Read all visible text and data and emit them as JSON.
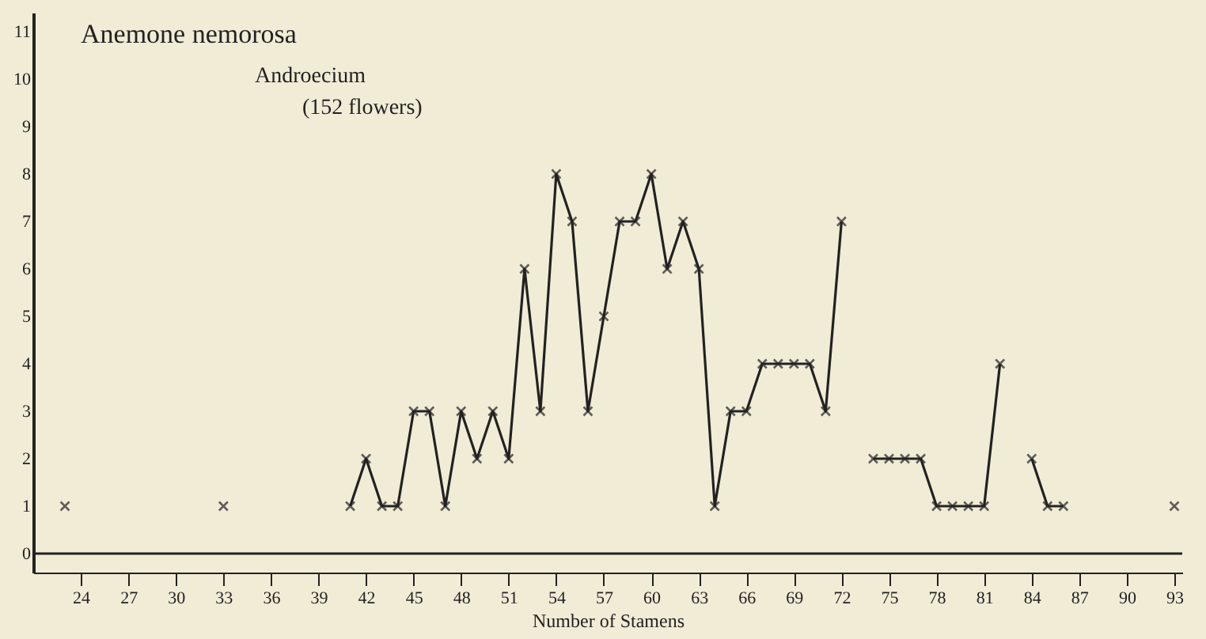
{
  "chart_data": {
    "type": "line",
    "title": "Anemone nemorosa",
    "subtitle": [
      "Androecium",
      "(152 flowers)"
    ],
    "xlabel": "Number of Stamens",
    "x": [
      23,
      24,
      25,
      26,
      27,
      28,
      29,
      30,
      31,
      32,
      33,
      34,
      35,
      36,
      37,
      38,
      39,
      40,
      41,
      42,
      43,
      44,
      45,
      46,
      47,
      48,
      49,
      50,
      51,
      52,
      53,
      54,
      55,
      56,
      57,
      58,
      59,
      60,
      61,
      62,
      63,
      64,
      65,
      66,
      67,
      68,
      69,
      70,
      71,
      72,
      73,
      74,
      75,
      76,
      77,
      78,
      79,
      80,
      81,
      82,
      83,
      84,
      85,
      86,
      87,
      88,
      89,
      90,
      91,
      92,
      93
    ],
    "series": [
      {
        "color": "#222222",
        "values": [
          1,
          null,
          null,
          null,
          null,
          null,
          null,
          null,
          null,
          null,
          1,
          null,
          null,
          null,
          null,
          null,
          null,
          null,
          1,
          2,
          1,
          1,
          3,
          3,
          1,
          3,
          2,
          3,
          2,
          6,
          3,
          8,
          7,
          3,
          5,
          7,
          7,
          8,
          6,
          7,
          6,
          1,
          3,
          3,
          4,
          4,
          4,
          4,
          3,
          7,
          null,
          2,
          2,
          2,
          2,
          1,
          1,
          1,
          1,
          4,
          null,
          2,
          1,
          1,
          null,
          null,
          null,
          null,
          null,
          null,
          1
        ]
      }
    ],
    "xlim": [
      21,
      93.5
    ],
    "xticks": [
      24,
      27,
      30,
      33,
      36,
      39,
      42,
      45,
      48,
      51,
      54,
      57,
      60,
      63,
      66,
      69,
      72,
      75,
      78,
      81,
      84,
      87,
      90,
      93
    ],
    "ylim": [
      -0.4,
      11.4
    ],
    "yticks": [
      0,
      1,
      2,
      3,
      4,
      5,
      6,
      7,
      8,
      9,
      10,
      11
    ],
    "ref_lines": [
      {
        "axis": "y",
        "value": 0
      }
    ],
    "grid": false,
    "legend": false,
    "marker": "cross",
    "line_style": "solid"
  }
}
